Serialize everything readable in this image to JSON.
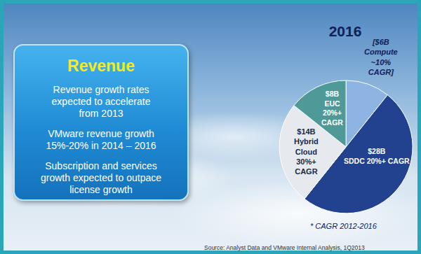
{
  "chart_data": {
    "type": "pie",
    "title": "2016",
    "values": [
      6,
      28,
      14,
      8
    ],
    "slice_labels": [
      [
        "[$6B",
        "Compute",
        "~10%",
        "CAGR]"
      ],
      [
        "$28B",
        "SDDC 20%+ CAGR"
      ],
      [
        "$14B",
        "Hybrid",
        "Cloud",
        "30%+",
        "CAGR"
      ],
      [
        "$8B",
        "EUC",
        "20%+",
        "CAGR"
      ]
    ],
    "colors": [
      "#8db4e2",
      "#22418f",
      "#e6eaee",
      "#4f9a98"
    ],
    "footnote": "* CAGR 2012-2016",
    "source": "Source: Analyst Data and VMware Internal Analysis, 1Q2013"
  },
  "panel": {
    "title": "Revenue",
    "bullets": [
      [
        "Revenue growth rates",
        "expected to accelerate",
        "from 2013"
      ],
      [
        "VMware revenue growth",
        "15%-20% in 2014 – 2016"
      ],
      [
        "Subscription and services",
        "growth expected to outpace",
        "license growth"
      ]
    ]
  }
}
